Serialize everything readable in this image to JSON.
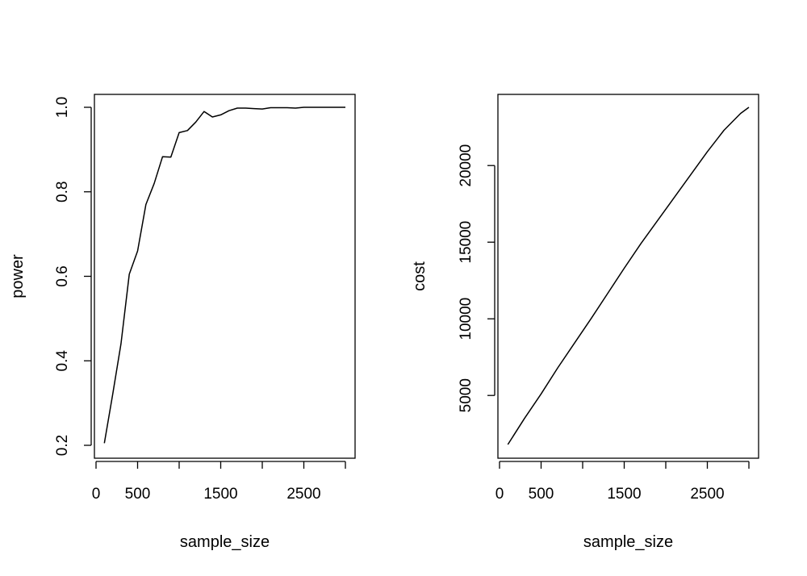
{
  "chart_data": [
    {
      "type": "line",
      "title": "",
      "xlabel": "sample_size",
      "ylabel": "power",
      "xlim": [
        0,
        3000
      ],
      "ylim": [
        0.2,
        1.0
      ],
      "x_ticks": [
        0,
        500,
        1500,
        2500
      ],
      "x_tick_marks": [
        0,
        500,
        1000,
        1500,
        2000,
        2500,
        3000
      ],
      "y_ticks": [
        "0.2",
        "0.4",
        "0.6",
        "0.8",
        "1.0"
      ],
      "grid": false,
      "series": [
        {
          "x": [
            100,
            200,
            300,
            400,
            500,
            600,
            700,
            800,
            900,
            1000,
            1100,
            1200,
            1300,
            1400,
            1500,
            1600,
            1700,
            1800,
            1900,
            2000,
            2100,
            2200,
            2300,
            2400,
            2500,
            2600,
            2700,
            2800,
            2900,
            3000
          ],
          "y": [
            0.205,
            0.32,
            0.44,
            0.605,
            0.66,
            0.77,
            0.82,
            0.883,
            0.882,
            0.94,
            0.945,
            0.965,
            0.99,
            0.977,
            0.982,
            0.992,
            0.998,
            0.998,
            0.997,
            0.996,
            0.999,
            0.999,
            0.999,
            0.998,
            1.0,
            1.0,
            1.0,
            1.0,
            1.0,
            1.0
          ]
        }
      ]
    },
    {
      "type": "line",
      "title": "",
      "xlabel": "sample_size",
      "ylabel": "cost",
      "xlim": [
        0,
        3000
      ],
      "ylim": [
        1800,
        23800
      ],
      "x_ticks": [
        0,
        500,
        1500,
        2500
      ],
      "x_tick_marks": [
        0,
        500,
        1000,
        1500,
        2000,
        2500,
        3000
      ],
      "y_ticks": [
        "5000",
        "10000",
        "15000",
        "20000"
      ],
      "grid": false,
      "series": [
        {
          "x": [
            100,
            300,
            500,
            700,
            900,
            1100,
            1300,
            1500,
            1700,
            1900,
            2100,
            2300,
            2500,
            2700,
            2900,
            3000
          ],
          "y": [
            1800,
            3500,
            5100,
            6800,
            8400,
            10000,
            11650,
            13300,
            14900,
            16400,
            17900,
            19400,
            20900,
            22300,
            23400,
            23800
          ]
        }
      ]
    }
  ]
}
